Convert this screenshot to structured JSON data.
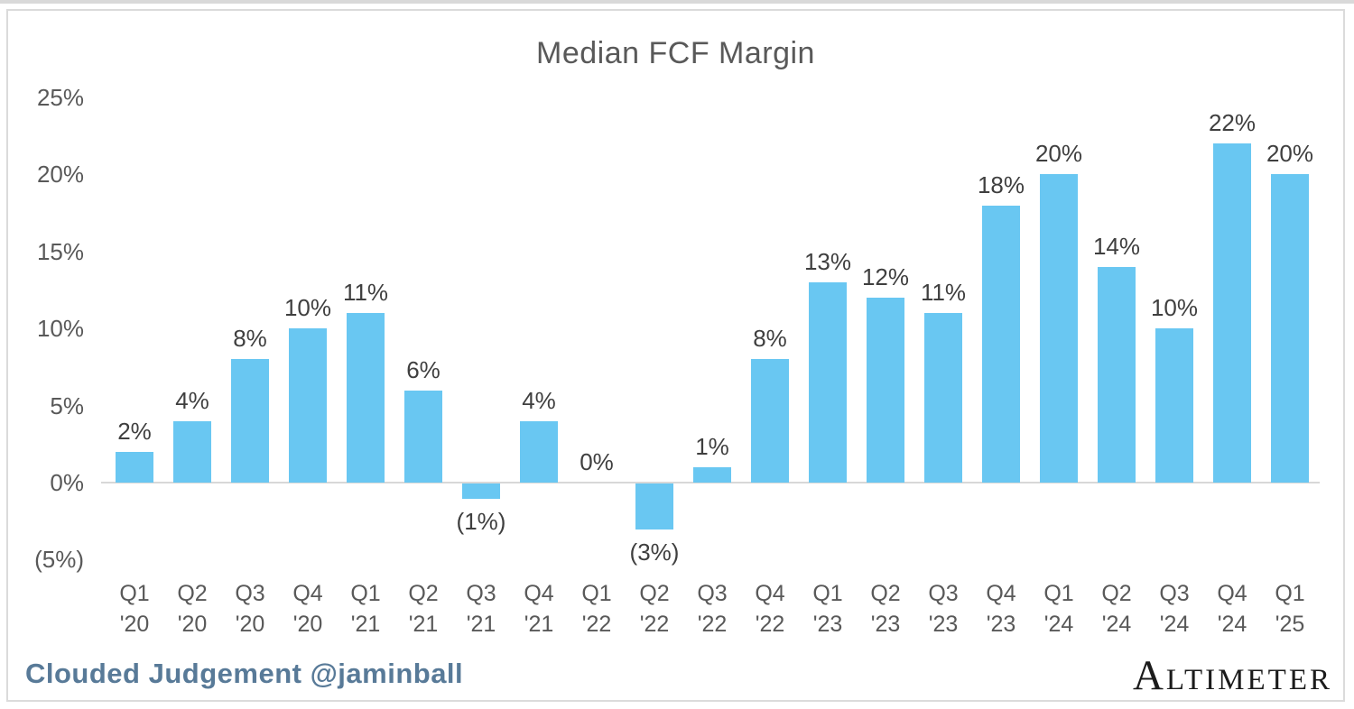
{
  "header": {
    "title": "Median FCF Margin"
  },
  "footer": {
    "credit": "Clouded Judgement @jaminball",
    "logo": "ALTIMETER"
  },
  "colors": {
    "bar": "#69c7f2",
    "axis_line": "#d8d8d8",
    "border": "#dbdbdb",
    "title_text": "#595959",
    "tick_text": "#595959",
    "data_label_text": "#3f3f3f",
    "credit_text": "#587a98",
    "logo_text": "#1b1b1b",
    "background": "#ffffff"
  },
  "chart_data": {
    "type": "bar",
    "title": "Median FCF Margin",
    "xlabel": "",
    "ylabel": "",
    "grid": false,
    "legend": false,
    "ylim": [
      -5,
      25
    ],
    "y_ticks": [
      {
        "label": "25%",
        "value": 25
      },
      {
        "label": "20%",
        "value": 20
      },
      {
        "label": "15%",
        "value": 15
      },
      {
        "label": "10%",
        "value": 10
      },
      {
        "label": "5%",
        "value": 5
      },
      {
        "label": "0%",
        "value": 0
      },
      {
        "label": "(5%)",
        "value": -5
      }
    ],
    "categories": [
      [
        "Q1",
        "'20"
      ],
      [
        "Q2",
        "'20"
      ],
      [
        "Q3",
        "'20"
      ],
      [
        "Q4",
        "'20"
      ],
      [
        "Q1",
        "'21"
      ],
      [
        "Q2",
        "'21"
      ],
      [
        "Q3",
        "'21"
      ],
      [
        "Q4",
        "'21"
      ],
      [
        "Q1",
        "'22"
      ],
      [
        "Q2",
        "'22"
      ],
      [
        "Q3",
        "'22"
      ],
      [
        "Q4",
        "'22"
      ],
      [
        "Q1",
        "'23"
      ],
      [
        "Q2",
        "'23"
      ],
      [
        "Q3",
        "'23"
      ],
      [
        "Q4",
        "'23"
      ],
      [
        "Q1",
        "'24"
      ],
      [
        "Q2",
        "'24"
      ],
      [
        "Q3",
        "'24"
      ],
      [
        "Q4",
        "'24"
      ],
      [
        "Q1",
        "'25"
      ]
    ],
    "values": [
      2,
      4,
      8,
      10,
      11,
      6,
      -1,
      4,
      0,
      -3,
      1,
      8,
      13,
      12,
      11,
      18,
      20,
      14,
      10,
      22,
      20
    ],
    "data_labels": [
      "2%",
      "4%",
      "8%",
      "10%",
      "11%",
      "6%",
      "(1%)",
      "4%",
      "0%",
      "(3%)",
      "1%",
      "8%",
      "13%",
      "12%",
      "11%",
      "18%",
      "20%",
      "14%",
      "10%",
      "22%",
      "20%"
    ]
  }
}
